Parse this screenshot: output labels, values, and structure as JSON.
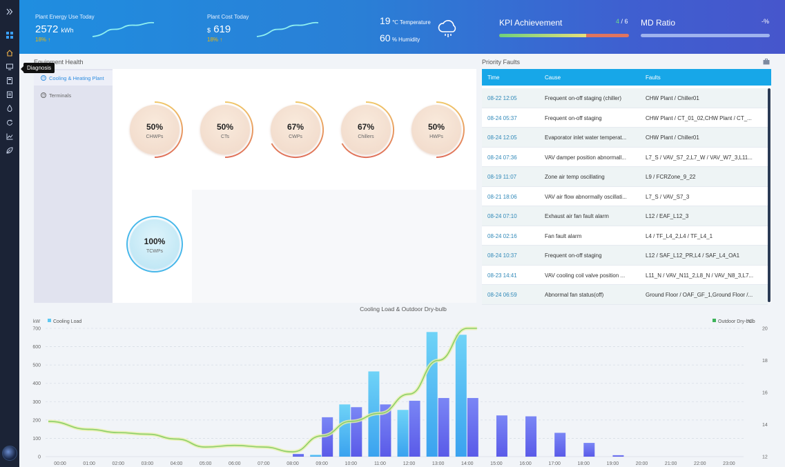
{
  "sidebar": {
    "items": [
      "expand-icon",
      "dashboard-icon",
      "home-icon",
      "diagnosis-icon",
      "calculator-icon",
      "clipboard-icon",
      "flame-icon",
      "refresh-icon",
      "chart-icon",
      "leaf-icon"
    ],
    "tooltip": "Diagnosis"
  },
  "header": {
    "energy": {
      "label": "Plant Energy Use Today",
      "value": "2572",
      "unit": "kWh",
      "change": "18% ↑"
    },
    "cost": {
      "label": "Plant Cost Today",
      "currency": "$",
      "value": "619",
      "change": "18% ↑"
    },
    "weather": {
      "temp_value": "19",
      "temp_unit": "℃",
      "temp_label": "Temperature",
      "hum_value": "60",
      "hum_unit": "%",
      "hum_label": "Humidity",
      "icon": "cloud-rain-icon"
    },
    "kpi": {
      "title": "KPI Achievement",
      "achieved": "4",
      "total": "/ 6",
      "progress": 0.67
    },
    "md": {
      "title": "MD Ratio",
      "value": "-%"
    }
  },
  "equipment": {
    "title": "Equipment Health",
    "tabs": [
      {
        "label": "Cooling & Heating Plant",
        "active": true
      },
      {
        "label": "Terminals",
        "active": false
      }
    ],
    "gauges": [
      {
        "value": "50%",
        "label": "CHWPs",
        "fraction": 0.5
      },
      {
        "value": "50%",
        "label": "CTs",
        "fraction": 0.5
      },
      {
        "value": "67%",
        "label": "CWPs",
        "fraction": 0.67
      },
      {
        "value": "67%",
        "label": "Chillers",
        "fraction": 0.67
      },
      {
        "value": "50%",
        "label": "HWPs",
        "fraction": 0.5
      },
      {
        "value": "100%",
        "label": "TCWPs",
        "fraction": 1.0
      }
    ]
  },
  "faults": {
    "title": "Priority Faults",
    "icon": "briefcase-icon",
    "columns": [
      "Time",
      "Cause",
      "Faults"
    ],
    "rows": [
      [
        "08-22 12:05",
        "Frequent on-off staging (chiller)",
        "CHW Plant / Chiller01"
      ],
      [
        "08-24 05:37",
        "Frequent on-off staging",
        "CHW Plant / CT_01_02,CHW Plant / CT_..."
      ],
      [
        "08-24 12:05",
        "Evaporator inlet water temperat...",
        "CHW Plant / Chiller01"
      ],
      [
        "08-24 07:36",
        "VAV damper position abnormall...",
        "L7_S / VAV_S7_2,L7_W / VAV_W7_3,L11..."
      ],
      [
        "08-19 11:07",
        "Zone air temp oscillating",
        "L9 / FCRZone_9_22"
      ],
      [
        "08-21 18:06",
        "VAV air flow abnormally oscillati...",
        "L7_S / VAV_S7_3"
      ],
      [
        "08-24 07:10",
        "Exhaust air fan fault alarm",
        "L12 / EAF_L12_3"
      ],
      [
        "08-24 02:16",
        "Fan fault alarm",
        "L4 / TF_L4_2,L4 / TF_L4_1"
      ],
      [
        "08-24 10:37",
        "Frequent on-off staging",
        "L12 / SAF_L12_PR,L4 / SAF_L4_OA1"
      ],
      [
        "08-23 14:41",
        "VAV cooling coil valve position ...",
        "L11_N / VAV_N11_2,L8_N / VAV_N8_3,L7..."
      ],
      [
        "08-24 06:59",
        "Abnormal fan status(off)",
        "Ground Floor / OAF_GF_1,Ground Floor /..."
      ]
    ]
  },
  "chart_data": {
    "type": "bar",
    "title": "Cooling Load & Outdoor Dry-bulb",
    "ylabel_left": "kW",
    "ylabel_right": "℃",
    "legend_left": "Cooling Load",
    "legend_right": "Outdoor Dry-bulb",
    "ylim_left": [
      0,
      700
    ],
    "yticks_left": [
      0,
      100,
      200,
      300,
      400,
      500,
      600,
      700
    ],
    "ylim_right": [
      12,
      20
    ],
    "yticks_right": [
      12,
      14,
      16,
      18,
      20
    ],
    "categories": [
      "00:00",
      "01:00",
      "02:00",
      "03:00",
      "04:00",
      "05:00",
      "06:00",
      "07:00",
      "08:00",
      "09:00",
      "10:00",
      "11:00",
      "12:00",
      "13:00",
      "14:00",
      "15:00",
      "16:00",
      "17:00",
      "18:00",
      "19:00",
      "20:00",
      "21:00",
      "22:00",
      "23:00"
    ],
    "series": [
      {
        "name": "Cooling Load",
        "color": "#5ec8f2",
        "values": [
          0,
          0,
          0,
          0,
          0,
          0,
          0,
          0,
          0,
          10,
          285,
          465,
          255,
          680,
          665,
          0,
          0,
          0,
          0,
          0,
          0,
          0,
          0,
          0
        ]
      },
      {
        "color": "#6f6ff0",
        "values": [
          0,
          0,
          0,
          0,
          0,
          0,
          0,
          0,
          15,
          215,
          270,
          285,
          305,
          320,
          320,
          225,
          220,
          130,
          75,
          8,
          0,
          0,
          0,
          0
        ]
      },
      {
        "name": "Outdoor Dry-bulb",
        "color": "#8bcf6a",
        "type": "line",
        "values": [
          14.2,
          13.7,
          13.5,
          13.4,
          13.1,
          12.6,
          12.7,
          12.6,
          12.3,
          13.3,
          14.2,
          14.7,
          15.9,
          18.0,
          20.0,
          null,
          null,
          null,
          null,
          null,
          null,
          null,
          null,
          null
        ]
      }
    ],
    "grid": true,
    "legend_position": "top"
  },
  "colors": {
    "accent": "#17a7e8",
    "gauge_warm": "#e8b86a",
    "gauge_red": "#e27a5a",
    "gauge_blue": "#3fb4e6",
    "warning": "#f5b800"
  }
}
